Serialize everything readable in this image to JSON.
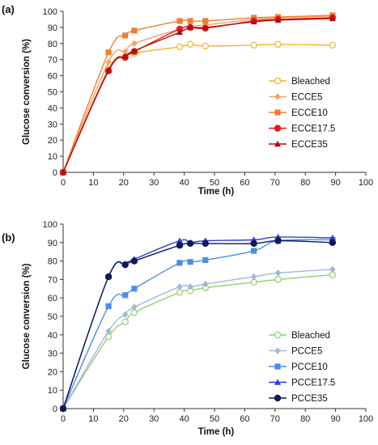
{
  "chart_data": [
    {
      "panel_label": "(a)",
      "type": "line",
      "xlabel": "Time (h)",
      "ylabel": "Glucose conversion (%)",
      "xlim": [
        0,
        100
      ],
      "ylim": [
        0,
        100
      ],
      "xticks": [
        "0",
        "10",
        "20",
        "30",
        "40",
        "50",
        "60",
        "70",
        "80",
        "90",
        "100"
      ],
      "yticks": [
        "0",
        "10",
        "20",
        "30",
        "40",
        "50",
        "60",
        "70",
        "80",
        "90",
        "100"
      ],
      "legend_position": "lower-right",
      "series": [
        {
          "name": "Bleached",
          "color": "#f5b21f",
          "marker": "circle-open",
          "x": [
            0,
            15,
            20.5,
            23.5,
            38.5,
            42,
            47,
            63,
            71,
            89
          ],
          "y": [
            0,
            64,
            71,
            74,
            78,
            79.5,
            78.5,
            79,
            79.5,
            79
          ]
        },
        {
          "name": "ECCE5",
          "color": "#f4a36a",
          "marker": "diamond",
          "x": [
            0,
            15,
            20.5,
            23.5,
            38.5,
            42,
            47,
            63,
            71,
            89
          ],
          "y": [
            0,
            68.5,
            75,
            80,
            89,
            91,
            91.5,
            95,
            96,
            97
          ]
        },
        {
          "name": "ECCE10",
          "color": "#f07f30",
          "marker": "square",
          "x": [
            0,
            15,
            20.5,
            23.5,
            38.5,
            42,
            47,
            63,
            71,
            89
          ],
          "y": [
            0,
            74.5,
            85,
            88,
            94,
            94,
            94,
            96,
            96.5,
            97.5
          ]
        },
        {
          "name": "ECCE17.5",
          "color": "#e31a1c",
          "marker": "circle",
          "x": [
            0,
            15,
            20.5,
            23.5,
            38.5,
            42,
            47,
            63,
            71,
            89
          ],
          "y": [
            0,
            63,
            71.5,
            75,
            89,
            90,
            89.5,
            94,
            95,
            96
          ]
        },
        {
          "name": "ECCE35",
          "color": "#b00f0f",
          "marker": "triangle",
          "x": [
            0,
            15,
            20.5,
            23.5,
            38.5,
            42,
            47,
            63,
            71,
            89
          ],
          "y": [
            0,
            63.5,
            72,
            75.5,
            87,
            90,
            90,
            93.5,
            94.5,
            95.5
          ]
        }
      ]
    },
    {
      "panel_label": "(b)",
      "type": "line",
      "xlabel": "Time (h)",
      "ylabel": "Glucose conversion (%)",
      "xlim": [
        0,
        100
      ],
      "ylim": [
        0,
        100
      ],
      "xticks": [
        "0",
        "10",
        "20",
        "30",
        "40",
        "50",
        "60",
        "70",
        "80",
        "90",
        "100"
      ],
      "yticks": [
        "0",
        "10",
        "20",
        "30",
        "40",
        "50",
        "60",
        "70",
        "80",
        "90",
        "100"
      ],
      "legend_position": "lower-right",
      "series": [
        {
          "name": "Bleached",
          "color": "#8fd16f",
          "marker": "circle-open",
          "x": [
            0,
            15,
            20.5,
            23.5,
            38.5,
            42,
            47,
            63,
            71,
            89
          ],
          "y": [
            0,
            39,
            47,
            52,
            63,
            64,
            65.5,
            68.5,
            70,
            72.5
          ]
        },
        {
          "name": "PCCE5",
          "color": "#a6b6d8",
          "marker": "diamond",
          "x": [
            0,
            15,
            20.5,
            23.5,
            38.5,
            42,
            47,
            63,
            71,
            89
          ],
          "y": [
            0,
            42,
            51,
            55,
            66,
            66,
            67.5,
            71.5,
            73.5,
            75.5
          ]
        },
        {
          "name": "PCCE10",
          "color": "#4a8ee8",
          "marker": "square",
          "x": [
            0,
            15,
            20.5,
            23.5,
            38.5,
            42,
            47,
            63,
            71,
            89
          ],
          "y": [
            0,
            55.5,
            61.5,
            65,
            79,
            79.5,
            80.5,
            85.5,
            91,
            91.5
          ]
        },
        {
          "name": "PCCE17.5",
          "color": "#2f3fd0",
          "marker": "triangle",
          "x": [
            0,
            15,
            20.5,
            23.5,
            38.5,
            42,
            47,
            63,
            71,
            89
          ],
          "y": [
            0,
            71.5,
            78.5,
            81,
            91,
            90,
            91,
            91.5,
            93,
            92.5
          ]
        },
        {
          "name": "PCCE35",
          "color": "#101a5a",
          "marker": "circle",
          "x": [
            0,
            15,
            20.5,
            23.5,
            38.5,
            42,
            47,
            63,
            71,
            89
          ],
          "y": [
            0,
            71.5,
            78,
            80,
            88.5,
            89.5,
            89.5,
            89.5,
            91,
            90
          ]
        }
      ]
    }
  ]
}
